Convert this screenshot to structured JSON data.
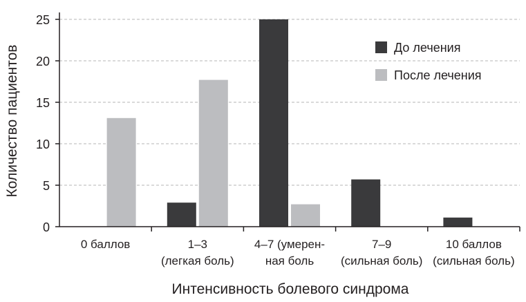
{
  "chart_data": {
    "type": "bar",
    "categories": [
      [
        "0 баллов"
      ],
      [
        "1–3",
        "(легкая боль)"
      ],
      [
        "4–7 (умерен-",
        "ная боль"
      ],
      [
        "7–9",
        "(сильная боль)"
      ],
      [
        "10 баллов",
        "(сильная боль)"
      ]
    ],
    "series": [
      {
        "name": "До лечения",
        "color": "#3a3a3c",
        "values": [
          0,
          2.9,
          25,
          5.7,
          1.1
        ]
      },
      {
        "name": "После лечения",
        "color": "#bcbdc0",
        "values": [
          13.1,
          17.7,
          2.7,
          0,
          0
        ]
      }
    ],
    "xlabel": "Интенсивность болевого синдрома",
    "ylabel": "Количество пациентов",
    "ylim": [
      0,
      25
    ],
    "yticks": [
      0,
      5,
      10,
      15,
      20,
      25
    ],
    "grid": true,
    "legend": "top-right"
  }
}
